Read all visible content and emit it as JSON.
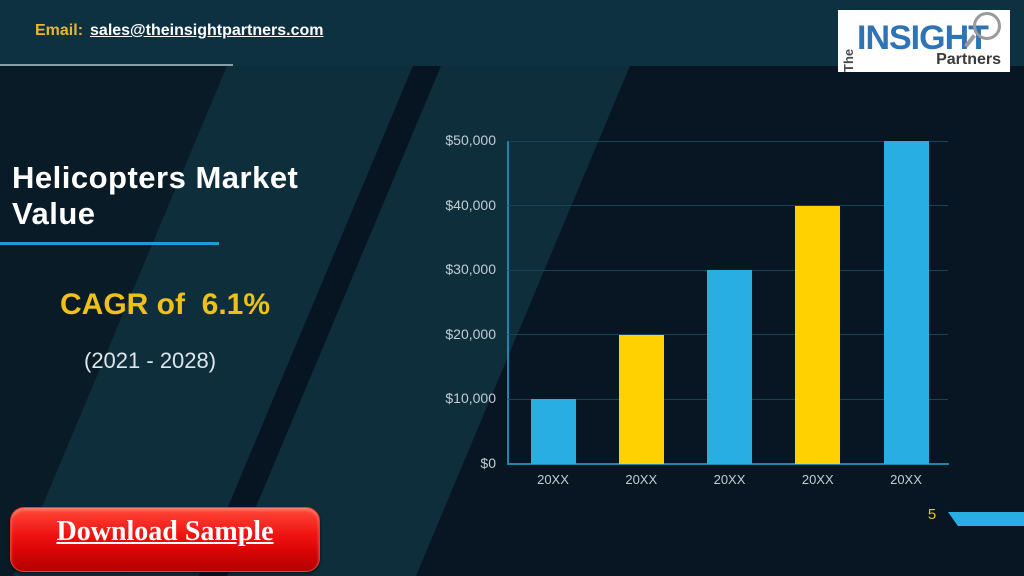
{
  "topbar": {
    "email_label": "Email:",
    "email_address": "sales@theinsightpartners.com"
  },
  "logo": {
    "the": "The",
    "insight": "INSIGHT",
    "partners": "Partners"
  },
  "headline": {
    "title_line1": "Helicopters Market",
    "title_line2": "Value",
    "cagr": "CAGR of  6.1%",
    "period": "(2021 - 2028)"
  },
  "cta": {
    "label": "Download Sample"
  },
  "page": {
    "number": "5"
  },
  "chart_data": {
    "type": "bar",
    "categories": [
      "20XX",
      "20XX",
      "20XX",
      "20XX",
      "20XX"
    ],
    "values": [
      10000,
      20000,
      30000,
      40000,
      50000
    ],
    "bar_colors": [
      "#29AEE3",
      "#FFD100",
      "#29AEE3",
      "#FFD100",
      "#29AEE3"
    ],
    "title": "",
    "xlabel": "",
    "ylabel": "",
    "ylim": [
      0,
      50000
    ],
    "ytick_step": 10000,
    "ytick_labels": [
      "$0",
      "$10,000",
      "$20,000",
      "$30,000",
      "$40,000",
      "$50,000"
    ],
    "grid": true,
    "legend": false
  },
  "colors": {
    "accent_cyan": "#29AEE3",
    "accent_yellow": "#EFC01A",
    "bar_yellow": "#FFD100",
    "cta_red": "#EE1111",
    "title_underline": "#1B9BD7",
    "topbar_bg": "#0D3140",
    "band_teal": "#0E2E3C",
    "dark_bg": "#081623",
    "axis_line": "#1F85AD",
    "tick_text": "#C2CDD3"
  }
}
